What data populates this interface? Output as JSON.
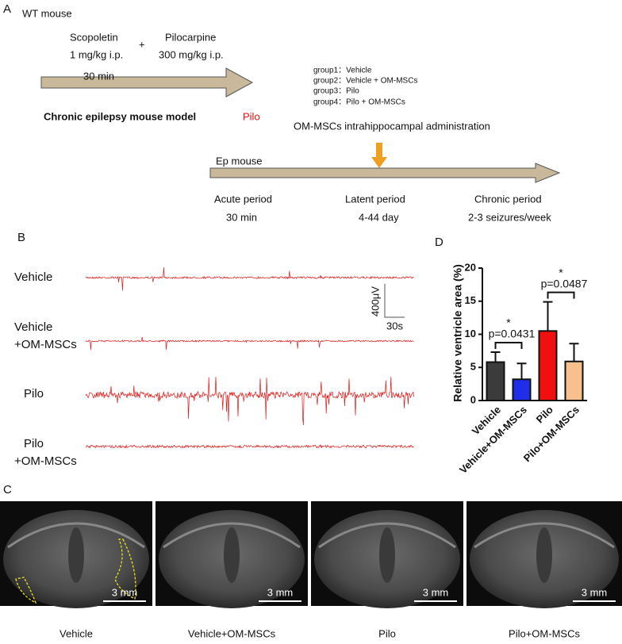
{
  "panel_a": {
    "label": "A",
    "title": "WT mouse",
    "drug1": {
      "name": "Scopoletin",
      "dose": "1 mg/kg i.p."
    },
    "plus": "+",
    "drug2": {
      "name": "Pilocarpine",
      "dose": "300 mg/kg i.p."
    },
    "interval": "30 min",
    "model": "Chronic epilepsy mouse model",
    "model_tag": "Pilo",
    "groups": [
      "group1：Vehicle",
      "group2：Vehicle + OM-MSCs",
      "group3：Pilo",
      "group4：Pilo + OM-MSCs"
    ],
    "treatment": "OM-MSCs intrahippocampal administration",
    "timeline_label": "Ep mouse",
    "periods": [
      {
        "name": "Acute period",
        "duration": "30 min"
      },
      {
        "name": "Latent period",
        "duration": "4-44 day"
      },
      {
        "name": "Chronic period",
        "duration": "2-3 seizures/week"
      }
    ]
  },
  "panel_b": {
    "label": "B",
    "traces": [
      [
        "Vehicle"
      ],
      [
        "Vehicle",
        "+OM-MSCs"
      ],
      [
        "Pilo"
      ],
      [
        "Pilo",
        "+OM-MSCs"
      ]
    ],
    "scale_y": "400μV",
    "scale_x": "30s"
  },
  "panel_c": {
    "label": "C",
    "images": [
      {
        "caption": "Vehicle",
        "scale": "3 mm"
      },
      {
        "caption": "Vehicle+OM-MSCs",
        "scale": "3 mm"
      },
      {
        "caption": "Pilo",
        "scale": "3 mm"
      },
      {
        "caption": "Pilo+OM-MSCs",
        "scale": "3 mm"
      }
    ]
  },
  "chart_data": {
    "type": "bar",
    "label": "D",
    "ylabel": "Relative ventricle area (%)",
    "categories": [
      "Vehicle",
      "Vehicle+OM-MSCs",
      "Pilo",
      "Pilo+OM-MSCs"
    ],
    "values": [
      5.8,
      3.2,
      10.5,
      5.9
    ],
    "errors": [
      1.5,
      2.4,
      4.4,
      2.7
    ],
    "colors": [
      "#3b3b3b",
      "#1f2ee8",
      "#f01010",
      "#f8c08c"
    ],
    "ylim": [
      0,
      20
    ],
    "yticks": [
      0,
      5,
      10,
      15,
      20
    ],
    "annotations": [
      {
        "text": "p=0.0431",
        "star": "*"
      },
      {
        "text": "p=0.0487",
        "star": "*"
      }
    ]
  }
}
